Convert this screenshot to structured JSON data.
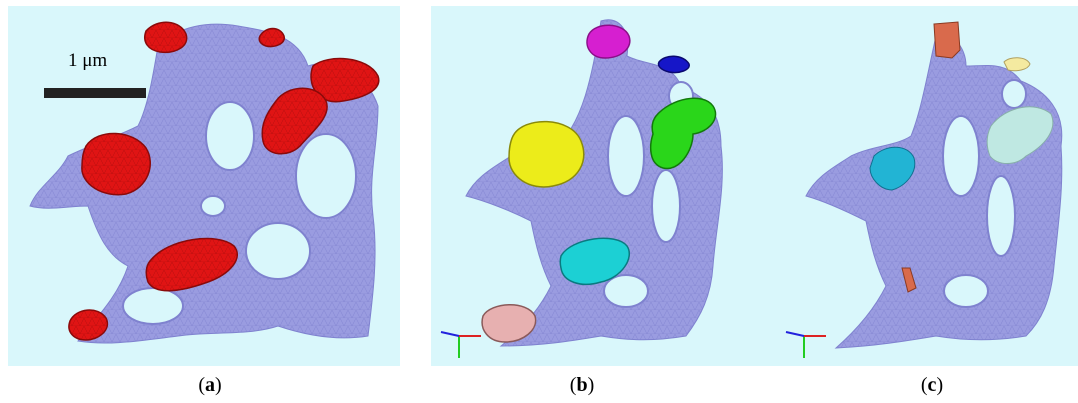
{
  "panels": [
    {
      "id": "a",
      "caption_prefix": "(",
      "caption_letter": "a",
      "caption_suffix": ")"
    },
    {
      "id": "b",
      "caption_prefix": "(",
      "caption_letter": "b",
      "caption_suffix": ")"
    },
    {
      "id": "c",
      "caption_prefix": "(",
      "caption_letter": "c",
      "caption_suffix": ")"
    }
  ],
  "scale_bar": {
    "label": "1 μm"
  },
  "colors": {
    "background": "#d9f7fb",
    "mesh": "#9a9ce0",
    "mesh_edge": "#7f82cf",
    "red": "#e01414",
    "magenta": "#d61fd0",
    "blue": "#1616c8",
    "yellow": "#ecec1a",
    "green": "#2ad61a",
    "cyan": "#1cd0d4",
    "pink": "#e7b0b0",
    "orange": "#d96a4c",
    "cyan_patch": "#22b4d4",
    "pale_yellow": "#f4eaa0",
    "pale_cyan": "#bfe8e2"
  }
}
